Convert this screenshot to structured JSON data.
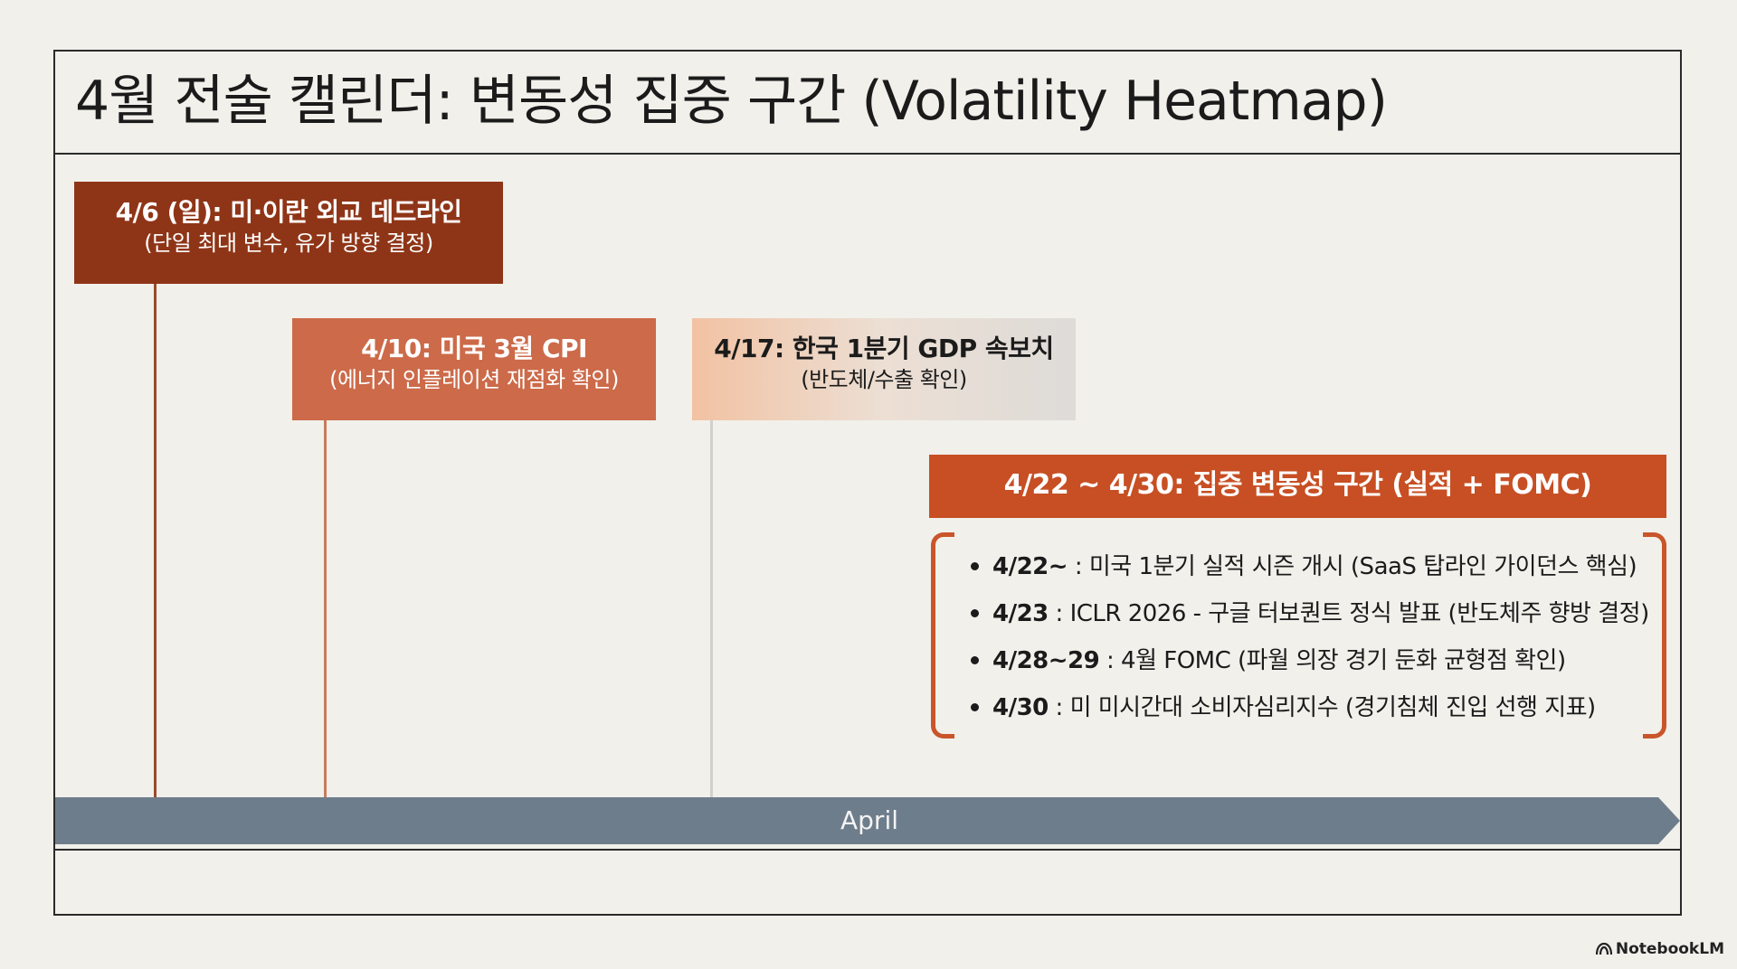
{
  "title": "4월 전술 캘린더: 변동성 집중 구간 (Volatility Heatmap)",
  "events": [
    {
      "title": "4/6 (일): 미·이란 외교 데드라인",
      "subtitle": "(단일 최대 변수, 유가 방향 결정)"
    },
    {
      "title": "4/10: 미국 3월 CPI",
      "subtitle": "(에너지 인플레이션 재점화 확인)"
    },
    {
      "title": "4/17: 한국 1분기 GDP 속보치",
      "subtitle": "(반도체/수출 확인)"
    },
    {
      "title": "4/22 ~ 4/30: 집중 변동성 구간 (실적 + FOMC)"
    }
  ],
  "details": [
    {
      "date": "4/22~",
      "text": " : 미국 1분기 실적 시즌 개시 (SaaS 탑라인 가이던스 핵심)"
    },
    {
      "date": "4/23",
      "text": " : ICLR 2026 - 구글 터보퀀트 정식 발표 (반도체주 향방 결정)"
    },
    {
      "date": "4/28~29",
      "text": " : 4월 FOMC (파월 의장 경기 둔화 균형점 확인)"
    },
    {
      "date": "4/30",
      "text": " : 미 미시간대 소비자심리지수 (경기침체 진입 선행 지표)"
    }
  ],
  "timeline": {
    "label": "April"
  },
  "watermark": "NotebookLM",
  "colors": {
    "event1": "#8f3517",
    "event2": "#cc6a49",
    "event3_gradient": [
      "#f2c2a3",
      "#dedbd8"
    ],
    "event4": "#c74f23",
    "bracket": "#c9552a",
    "timeline": "#6e7d8b",
    "background": "#f1f0eb"
  }
}
